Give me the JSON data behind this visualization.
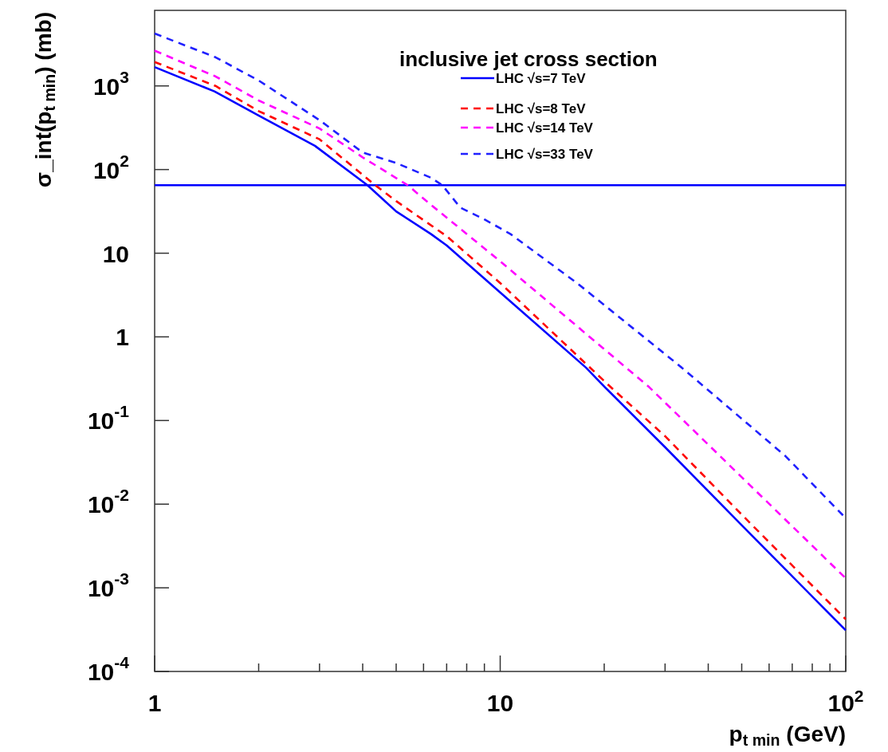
{
  "chart_data": {
    "type": "line",
    "xlabel": "p$_{t min}$ (GeV)",
    "ylabel": "σ_int(p$_{t min}$) (mb)",
    "legend_title": "inclusive jet cross section",
    "log": "xy",
    "legend": "top right",
    "grid": false,
    "xlim": [
      1,
      100
    ],
    "ylim": [
      0.0001,
      8000
    ],
    "xticks": [
      1,
      10,
      {
        "value": 100,
        "label": "10$^{2}$"
      }
    ],
    "yticks": [
      {
        "value": 0.0001,
        "label": "10$^{-4}$"
      },
      {
        "value": 0.001,
        "label": "10$^{-3}$"
      },
      {
        "value": 0.01,
        "label": "10$^{-2}$"
      },
      {
        "value": 0.1,
        "label": "10$^{-1}$"
      },
      1,
      10,
      {
        "value": 100,
        "label": "10$^{2}$"
      },
      {
        "value": 1000,
        "label": "10$^{3}$"
      }
    ],
    "ref_lines": [
      {
        "axis": "y",
        "value": 65,
        "color": "#0000ff",
        "line_style": "solid"
      }
    ],
    "series": [
      {
        "name": "LHC √s=7 TeV",
        "color": "#0000ff",
        "line_style": "solid",
        "x": [
          1,
          1.49,
          2,
          2.91,
          4.13,
          5,
          6.3,
          7,
          10,
          17.7,
          20.1,
          30,
          50,
          100
        ],
        "values": [
          1680,
          860,
          443,
          192,
          65,
          31.6,
          17,
          12.4,
          3.4,
          0.43,
          0.25,
          0.048,
          0.0056,
          0.00031
        ]
      },
      {
        "name": "LHC √s=8 TeV",
        "color": "#ff0000",
        "line_style": "dashed",
        "x": [
          1,
          1.5,
          2,
          3,
          4.35,
          5,
          7,
          10,
          20.9,
          30,
          50,
          100
        ],
        "values": [
          1930,
          1000,
          500,
          230,
          65,
          42,
          16,
          4.4,
          0.25,
          0.065,
          0.0075,
          0.00042
        ]
      },
      {
        "name": "LHC √s=14 TeV",
        "color": "#ff00ff",
        "line_style": "dashed",
        "x": [
          1,
          1.5,
          2,
          3,
          4,
          5.4,
          6.3,
          10,
          27,
          50,
          100
        ],
        "values": [
          2640,
          1300,
          670,
          310,
          140,
          65,
          38,
          8,
          0.25,
          0.021,
          0.0013
        ]
      },
      {
        "name": "LHC √s=33 TeV",
        "color": "#2020ff",
        "line_style": "dashed",
        "x": [
          1,
          1.5,
          2,
          3,
          4,
          5,
          6.3,
          6.8,
          7.67,
          8.98,
          10.7,
          16.8,
          33.5,
          66.7,
          100
        ],
        "values": [
          4230,
          2200,
          1160,
          390,
          160,
          120,
          80,
          65,
          35,
          25.5,
          17,
          4.3,
          0.43,
          0.038,
          0.0068
        ]
      }
    ]
  }
}
